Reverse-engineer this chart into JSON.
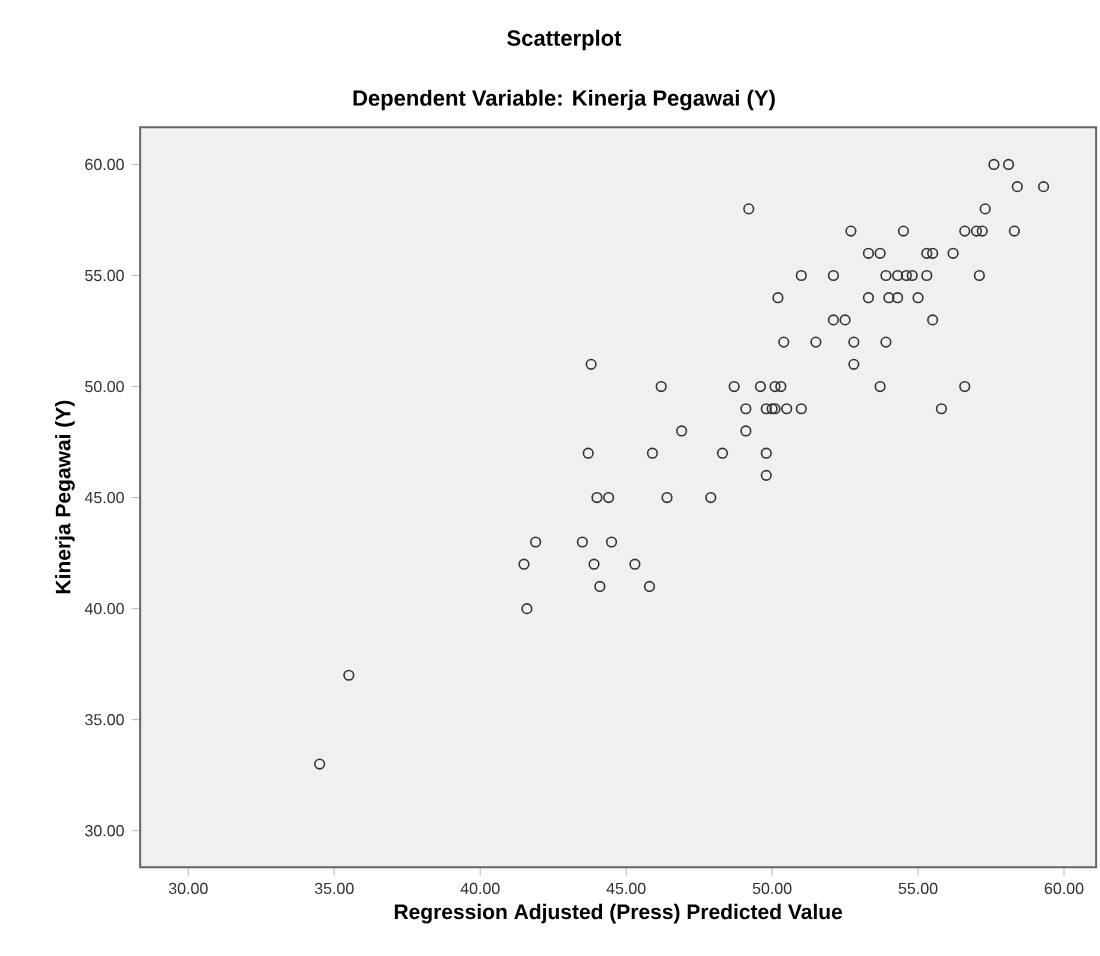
{
  "chart_data": {
    "type": "scatter",
    "title": "Scatterplot",
    "subtitle": "Dependent Variable: Kinerja Pegawai (Y)",
    "xlabel": "Regression Adjusted (Press) Predicted Value",
    "ylabel": "Kinerja Pegawai (Y)",
    "xlim": [
      28.35,
      61.1
    ],
    "ylim": [
      28.36,
      61.68
    ],
    "xticks": [
      {
        "value": 30,
        "label": "30.00"
      },
      {
        "value": 35,
        "label": "35.00"
      },
      {
        "value": 40,
        "label": "40.00"
      },
      {
        "value": 45,
        "label": "45.00"
      },
      {
        "value": 50,
        "label": "50.00"
      },
      {
        "value": 55,
        "label": "55.00"
      },
      {
        "value": 60,
        "label": "60.00"
      }
    ],
    "yticks": [
      {
        "value": 30,
        "label": "30.00"
      },
      {
        "value": 35,
        "label": "35.00"
      },
      {
        "value": 40,
        "label": "40.00"
      },
      {
        "value": 45,
        "label": "45.00"
      },
      {
        "value": 50,
        "label": "50.00"
      },
      {
        "value": 55,
        "label": "55.00"
      },
      {
        "value": 60,
        "label": "60.00"
      }
    ],
    "grid": false,
    "marker": "circle",
    "series": [
      {
        "color": "#333333",
        "x": [
          57.6,
          58.1,
          58.4,
          59.3,
          49.2,
          57.3,
          52.7,
          54.5,
          56.6,
          57.0,
          57.2,
          58.3,
          53.3,
          53.7,
          55.3,
          55.5,
          56.2,
          51.0,
          52.1,
          53.9,
          54.3,
          54.6,
          54.8,
          55.3,
          57.1,
          50.2,
          53.3,
          54.0,
          54.3,
          55.0,
          52.1,
          52.5,
          55.5,
          50.4,
          51.5,
          52.8,
          53.9,
          43.8,
          52.8,
          46.2,
          48.7,
          49.6,
          50.1,
          50.3,
          53.7,
          56.6,
          49.1,
          49.8,
          50.0,
          50.1,
          50.5,
          51.0,
          55.8,
          46.9,
          49.1,
          43.7,
          45.9,
          48.3,
          49.8,
          49.8,
          44.0,
          44.4,
          46.4,
          47.9,
          41.9,
          43.5,
          44.5,
          41.5,
          43.9,
          45.3,
          44.1,
          45.8,
          41.6,
          35.5,
          34.5
        ],
        "values": [
          60,
          60,
          59,
          59,
          58,
          58,
          57,
          57,
          57,
          57,
          57,
          57,
          56,
          56,
          56,
          56,
          56,
          55,
          55,
          55,
          55,
          55,
          55,
          55,
          55,
          54,
          54,
          54,
          54,
          54,
          53,
          53,
          53,
          52,
          52,
          52,
          52,
          51,
          51,
          50,
          50,
          50,
          50,
          50,
          50,
          50,
          49,
          49,
          49,
          49,
          49,
          49,
          49,
          48,
          48,
          47,
          47,
          47,
          47,
          46,
          45,
          45,
          45,
          45,
          43,
          43,
          43,
          42,
          42,
          42,
          41,
          41,
          40,
          37,
          33
        ]
      }
    ]
  }
}
